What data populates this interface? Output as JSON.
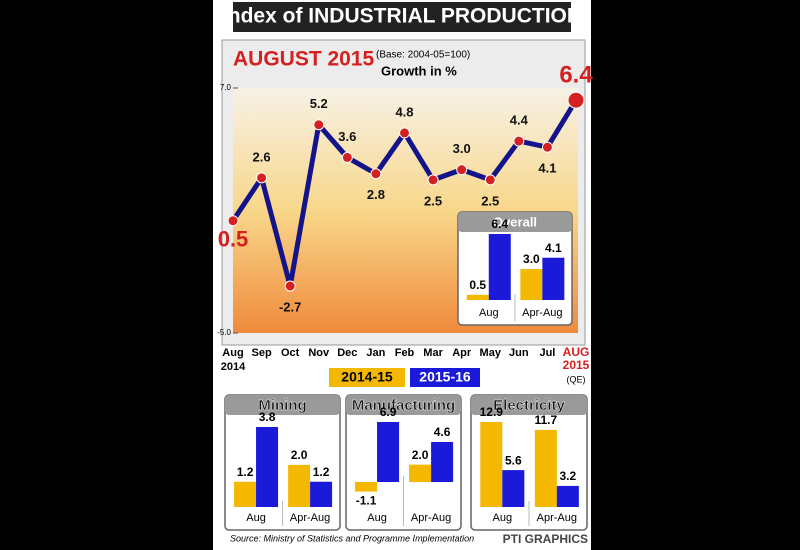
{
  "header": {
    "title": "Index of INDUSTRIAL PRODUCTION"
  },
  "chart_data": [
    {
      "type": "line",
      "title": "AUGUST 2015",
      "subtitle": "(Base: 2004-05=100)",
      "y_label": "Growth in %",
      "categories": [
        "Aug",
        "Sep",
        "Oct",
        "Nov",
        "Dec",
        "Jan",
        "Feb",
        "Mar",
        "Apr",
        "May",
        "Jun",
        "Jul",
        "AUG"
      ],
      "start_year_label": "2014",
      "end_year_label": "2015",
      "end_note": "(QE)",
      "values": [
        0.5,
        2.6,
        -2.7,
        5.2,
        3.6,
        2.8,
        4.8,
        2.5,
        3.0,
        2.5,
        4.4,
        4.1,
        6.4
      ],
      "value_labels": [
        "0.5",
        "2.6",
        "-2.7",
        "5.2",
        "3.6",
        "2.8",
        "4.8",
        "2.5",
        "3.0",
        "2.5",
        "4.4",
        "4.1",
        "6.4"
      ],
      "color": "#14148a",
      "marker_color": "#d42020",
      "ylim": [
        -5,
        7
      ],
      "yticks": [
        {
          "value": -5,
          "label": "-5.0"
        },
        {
          "value": 7,
          "label": "7.0"
        }
      ]
    },
    {
      "type": "bar",
      "title": "Overall",
      "categories": [
        "Aug",
        "Apr-Aug"
      ],
      "series": [
        {
          "name": "2014-15",
          "color": "#f5b800",
          "values": [
            0.5,
            3.0
          ],
          "value_labels": [
            "0.5",
            "3.0"
          ]
        },
        {
          "name": "2015-16",
          "color": "#1a1ad8",
          "values": [
            6.4,
            4.1
          ],
          "value_labels": [
            "6.4",
            "4.1"
          ]
        }
      ]
    },
    {
      "type": "bar",
      "title": "Mining",
      "categories": [
        "Aug",
        "Apr-Aug"
      ],
      "series": [
        {
          "color": "#f5b800",
          "values": [
            1.2,
            2.0
          ],
          "value_labels": [
            "1.2",
            "2.0"
          ]
        },
        {
          "color": "#1a1ad8",
          "values": [
            3.8,
            1.2
          ],
          "value_labels": [
            "3.8",
            "1.2"
          ]
        }
      ]
    },
    {
      "type": "bar",
      "title": "Manufacturing",
      "categories": [
        "Aug",
        "Apr-Aug"
      ],
      "series": [
        {
          "color": "#f5b800",
          "values": [
            -1.1,
            2.0
          ],
          "value_labels": [
            "-1.1",
            "2.0"
          ]
        },
        {
          "color": "#1a1ad8",
          "values": [
            6.9,
            4.6
          ],
          "value_labels": [
            "6.9",
            "4.6"
          ]
        }
      ]
    },
    {
      "type": "bar",
      "title": "Electricity",
      "categories": [
        "Aug",
        "Apr-Aug"
      ],
      "series": [
        {
          "color": "#f5b800",
          "values": [
            12.9,
            11.7
          ],
          "value_labels": [
            "12.9",
            "11.7"
          ]
        },
        {
          "color": "#1a1ad8",
          "values": [
            5.6,
            3.2
          ],
          "value_labels": [
            "5.6",
            "3.2"
          ]
        }
      ]
    }
  ],
  "footer": {
    "source": "Source: Ministry of Statistics and Programme Implementation",
    "credit": "PTI GRAPHICS"
  }
}
